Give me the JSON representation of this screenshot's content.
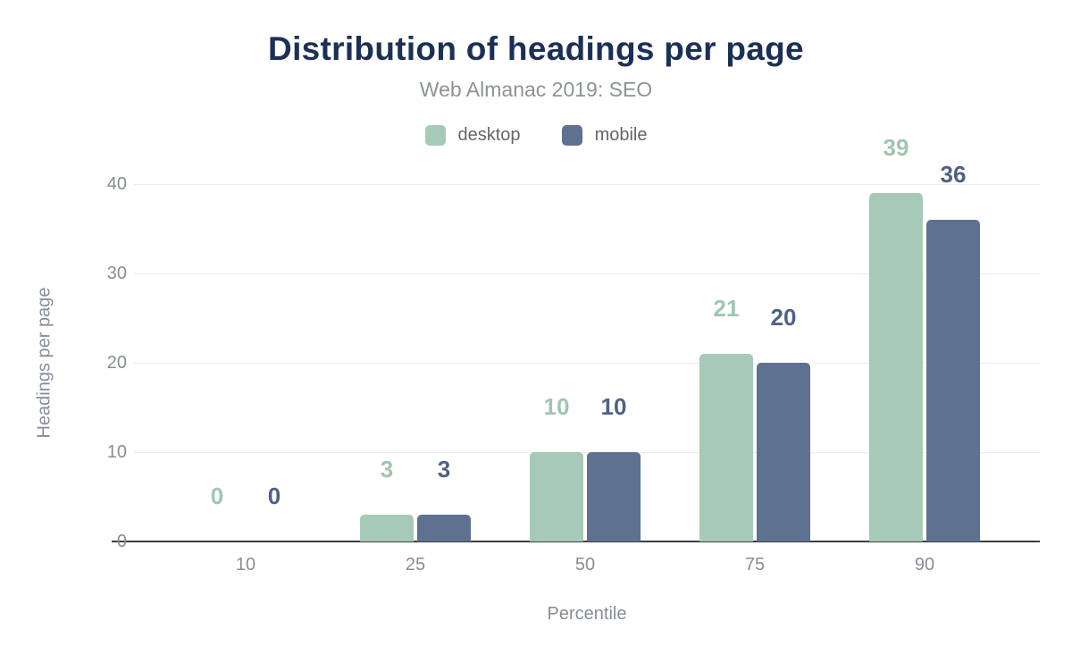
{
  "chart_data": {
    "type": "bar",
    "title": "Distribution of headings per page",
    "subtitle": "Web Almanac 2019: SEO",
    "xlabel": "Percentile",
    "ylabel": "Headings per page",
    "categories": [
      "10",
      "25",
      "50",
      "75",
      "90"
    ],
    "series": [
      {
        "name": "desktop",
        "values": [
          0,
          3,
          10,
          21,
          39
        ],
        "color": "#a7c9b8",
        "label_color": "#9fc5b1"
      },
      {
        "name": "mobile",
        "values": [
          0,
          3,
          10,
          20,
          36
        ],
        "color": "#5f7190",
        "label_color": "#4e6186"
      }
    ],
    "ylim": [
      0,
      40
    ],
    "yticks": [
      0,
      10,
      20,
      30,
      40
    ],
    "grid": "horizontal",
    "legend_position": "top",
    "data_labels": true,
    "colors": {
      "title_text": "#1b3055",
      "subtitle_text": "#8d9298",
      "legend_text": "#666666",
      "tick_text": "#878d96",
      "axis_line": "#3c3c43",
      "gridline": "#ececec",
      "background": "#ffffff"
    }
  }
}
